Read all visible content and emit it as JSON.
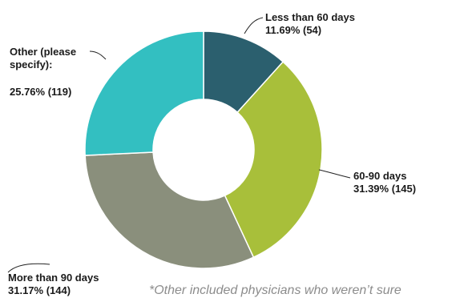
{
  "chart_data": {
    "type": "pie",
    "variant": "donut",
    "title": "",
    "slices": [
      {
        "label_line1": "Less than 60 days",
        "label_line2": "11.69% (54)",
        "percent": 11.69,
        "count": 54,
        "color": "#2b5f6e"
      },
      {
        "label_line1": "60-90 days",
        "label_line2": "31.39% (145)",
        "percent": 31.39,
        "count": 145,
        "color": "#a8bf3a"
      },
      {
        "label_line1": "More than 90 days",
        "label_line2": "31.17% (144)",
        "percent": 31.17,
        "count": 144,
        "color": "#8a8f7c"
      },
      {
        "label_line1": "Other (please",
        "label_line1b": "specify):",
        "label_line2": "25.76% (119)",
        "percent": 25.76,
        "count": 119,
        "color": "#33bfc1"
      }
    ],
    "footnote": "*Other included physicians who weren’t sure"
  }
}
